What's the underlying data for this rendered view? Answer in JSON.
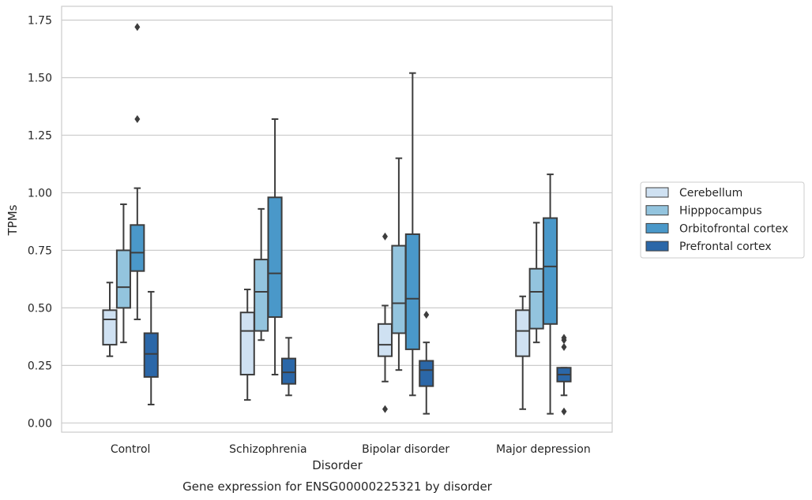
{
  "chart_data": {
    "type": "box",
    "title": "Gene expression for ENSG00000225321 by disorder",
    "xlabel": "Disorder",
    "ylabel": "TPMs",
    "ylim": [
      -0.04,
      1.81
    ],
    "yticks": [
      "0.00",
      "0.25",
      "0.50",
      "0.75",
      "1.00",
      "1.25",
      "1.50",
      "1.75"
    ],
    "categories": [
      "Control",
      "Schizophrenia",
      "Bipolar disorder",
      "Major depression"
    ],
    "grid": "horizontal",
    "legend_position": "right",
    "series": [
      {
        "name": "Cerebellum",
        "color": "#cfe1f2",
        "boxes": [
          {
            "whislo": 0.29,
            "q1": 0.34,
            "med": 0.45,
            "q3": 0.49,
            "whishi": 0.61,
            "fliers": []
          },
          {
            "whislo": 0.1,
            "q1": 0.21,
            "med": 0.4,
            "q3": 0.48,
            "whishi": 0.58,
            "fliers": []
          },
          {
            "whislo": 0.18,
            "q1": 0.29,
            "med": 0.34,
            "q3": 0.43,
            "whishi": 0.51,
            "fliers": [
              0.81,
              0.06
            ]
          },
          {
            "whislo": 0.06,
            "q1": 0.29,
            "med": 0.4,
            "q3": 0.49,
            "whishi": 0.55,
            "fliers": []
          }
        ]
      },
      {
        "name": "Hipppocampus",
        "color": "#93c4de",
        "boxes": [
          {
            "whislo": 0.35,
            "q1": 0.5,
            "med": 0.59,
            "q3": 0.75,
            "whishi": 0.95,
            "fliers": []
          },
          {
            "whislo": 0.36,
            "q1": 0.4,
            "med": 0.57,
            "q3": 0.71,
            "whishi": 0.93,
            "fliers": []
          },
          {
            "whislo": 0.23,
            "q1": 0.39,
            "med": 0.52,
            "q3": 0.77,
            "whishi": 1.15,
            "fliers": []
          },
          {
            "whislo": 0.35,
            "q1": 0.41,
            "med": 0.57,
            "q3": 0.67,
            "whishi": 0.87,
            "fliers": []
          }
        ]
      },
      {
        "name": "Orbitofrontal cortex",
        "color": "#4a98c9",
        "boxes": [
          {
            "whislo": 0.45,
            "q1": 0.66,
            "med": 0.74,
            "q3": 0.86,
            "whishi": 1.02,
            "fliers": [
              1.72,
              1.32
            ]
          },
          {
            "whislo": 0.21,
            "q1": 0.46,
            "med": 0.65,
            "q3": 0.98,
            "whishi": 1.32,
            "fliers": []
          },
          {
            "whislo": 0.12,
            "q1": 0.32,
            "med": 0.54,
            "q3": 0.82,
            "whishi": 1.52,
            "fliers": []
          },
          {
            "whislo": 0.04,
            "q1": 0.43,
            "med": 0.68,
            "q3": 0.89,
            "whishi": 1.08,
            "fliers": []
          }
        ]
      },
      {
        "name": "Prefrontal cortex",
        "color": "#2b67a8",
        "boxes": [
          {
            "whislo": 0.08,
            "q1": 0.2,
            "med": 0.3,
            "q3": 0.39,
            "whishi": 0.57,
            "fliers": []
          },
          {
            "whislo": 0.12,
            "q1": 0.17,
            "med": 0.22,
            "q3": 0.28,
            "whishi": 0.37,
            "fliers": []
          },
          {
            "whislo": 0.04,
            "q1": 0.16,
            "med": 0.23,
            "q3": 0.27,
            "whishi": 0.35,
            "fliers": [
              0.47
            ]
          },
          {
            "whislo": 0.12,
            "q1": 0.18,
            "med": 0.21,
            "q3": 0.24,
            "whishi": 0.24,
            "fliers": [
              0.37,
              0.36,
              0.33,
              0.05
            ]
          }
        ]
      }
    ]
  }
}
